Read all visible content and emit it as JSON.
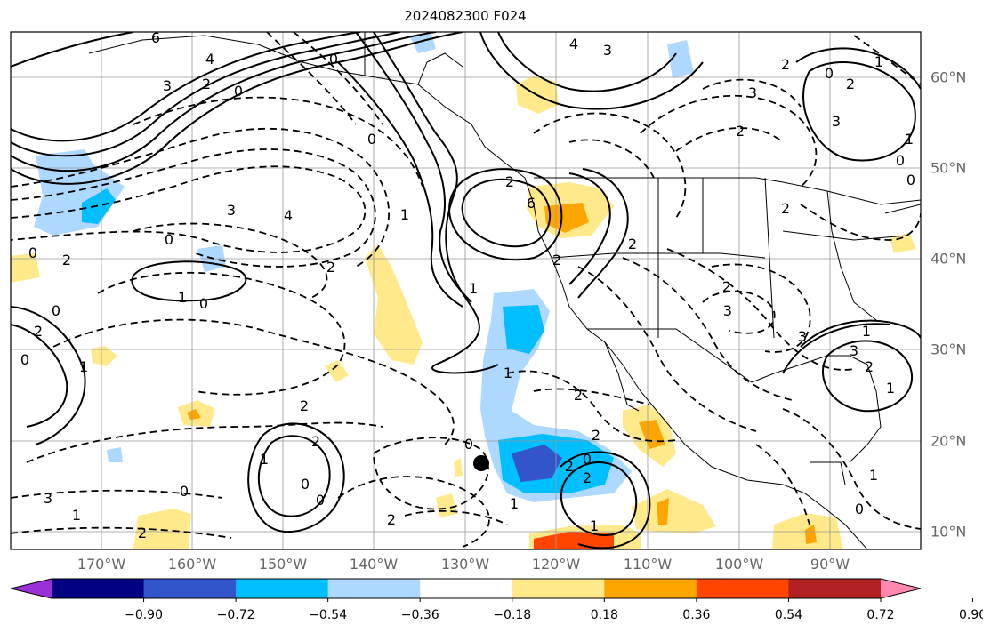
{
  "title": "2024082300 F024",
  "lon_labels": [
    "170°W",
    "160°W",
    "150°W",
    "140°W",
    "130°W",
    "120°W",
    "110°W",
    "100°W",
    "90°W"
  ],
  "lat_labels": [
    "60°N",
    "50°N",
    "40°N",
    "30°N",
    "20°N",
    "10°N"
  ],
  "colorbar": {
    "colors": [
      "#9b30d9",
      "#000080",
      "#3355cc",
      "#00bfff",
      "#add8ff",
      "#ffffff",
      "#ffe98a",
      "#ffa500",
      "#ff4500",
      "#b22222",
      "#ff88b0"
    ],
    "tick_labels": [
      "−0.90",
      "−0.72",
      "−0.54",
      "−0.36",
      "−0.18",
      "0.18",
      "0.36",
      "0.54",
      "0.72",
      "0.90"
    ]
  },
  "contour_labels": [
    "6",
    "4",
    "3",
    "2",
    "0",
    "0",
    "4",
    "3",
    "0",
    "3",
    "2",
    "6",
    "3",
    "4",
    "2",
    "0",
    "2",
    "1",
    "0",
    "0",
    "2",
    "1",
    "2",
    "2",
    "2",
    "0",
    "1",
    "0",
    "3",
    "0",
    "1",
    "0",
    "0",
    "2",
    "2",
    "2",
    "1",
    "3",
    "2",
    "2",
    "2",
    "1",
    "2",
    "1",
    "0",
    "0",
    "0",
    "1",
    "3",
    "1",
    "2",
    "0",
    "2",
    "1",
    "2",
    "0",
    "1",
    "2",
    "2",
    "0",
    "1",
    "1",
    "2",
    "3",
    "3",
    "1"
  ]
}
